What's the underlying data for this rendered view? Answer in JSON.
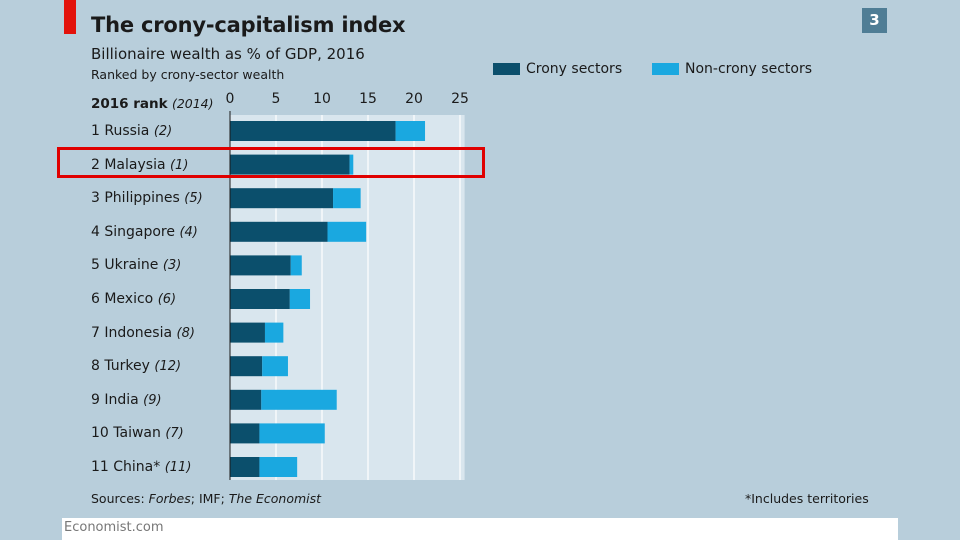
{
  "page_number": "3",
  "chart_data": {
    "type": "bar",
    "orientation": "horizontal",
    "stacked": true,
    "title": "The crony-capitalism index",
    "subtitle": "Billionaire wealth as % of GDP, 2016",
    "subsubtitle": "Ranked by crony-sector wealth",
    "rank_header": {
      "bold": "2016 rank",
      "italic": "(2014)"
    },
    "categories": [
      {
        "rank": "1",
        "name": "Russia",
        "prev": "(2)"
      },
      {
        "rank": "2",
        "name": "Malaysia",
        "prev": "(1)"
      },
      {
        "rank": "3",
        "name": "Philippines",
        "prev": "(5)"
      },
      {
        "rank": "4",
        "name": "Singapore ",
        "prev": "(4)"
      },
      {
        "rank": "5",
        "name": "Ukraine",
        "prev": "(3)"
      },
      {
        "rank": "6",
        "name": "Mexico",
        "prev": "(6)"
      },
      {
        "rank": "7",
        "name": "Indonesia",
        "prev": "(8)"
      },
      {
        "rank": "8",
        "name": "Turkey",
        "prev": "(12)"
      },
      {
        "rank": "9",
        "name": "India",
        "prev": "(9)"
      },
      {
        "rank": "10",
        "name": "Taiwan",
        "prev": "(7)"
      },
      {
        "rank": "11",
        "name": "China*",
        "prev": "(11)"
      }
    ],
    "series": [
      {
        "name": "Crony sectors",
        "color": "#0b4f6c",
        "values": [
          18.0,
          13.0,
          11.2,
          10.6,
          6.6,
          6.5,
          3.8,
          3.5,
          3.4,
          3.2,
          3.2
        ]
      },
      {
        "name": "Non-crony sectors",
        "color": "#1aa8e0",
        "values": [
          3.2,
          0.4,
          3.0,
          4.2,
          1.2,
          2.2,
          2.0,
          2.8,
          8.2,
          7.1,
          4.1
        ]
      }
    ],
    "xlim": [
      0,
      25.5
    ],
    "xticks": [
      "0",
      "5",
      "10",
      "15",
      "20",
      "25"
    ],
    "xtick_values": [
      0,
      5,
      10,
      15,
      20,
      25
    ],
    "grid": true,
    "legend_position": "top-right",
    "highlighted_category": "Malaysia",
    "highlight_color": "#e00000",
    "plot_background": "#d9e6ee"
  },
  "source_parts": {
    "prefix": "Sources: ",
    "forbes": "Forbes",
    "mid": "; IMF; ",
    "economist": "The Economist"
  },
  "footnote": "*Includes territories",
  "footer": "Economist.com"
}
